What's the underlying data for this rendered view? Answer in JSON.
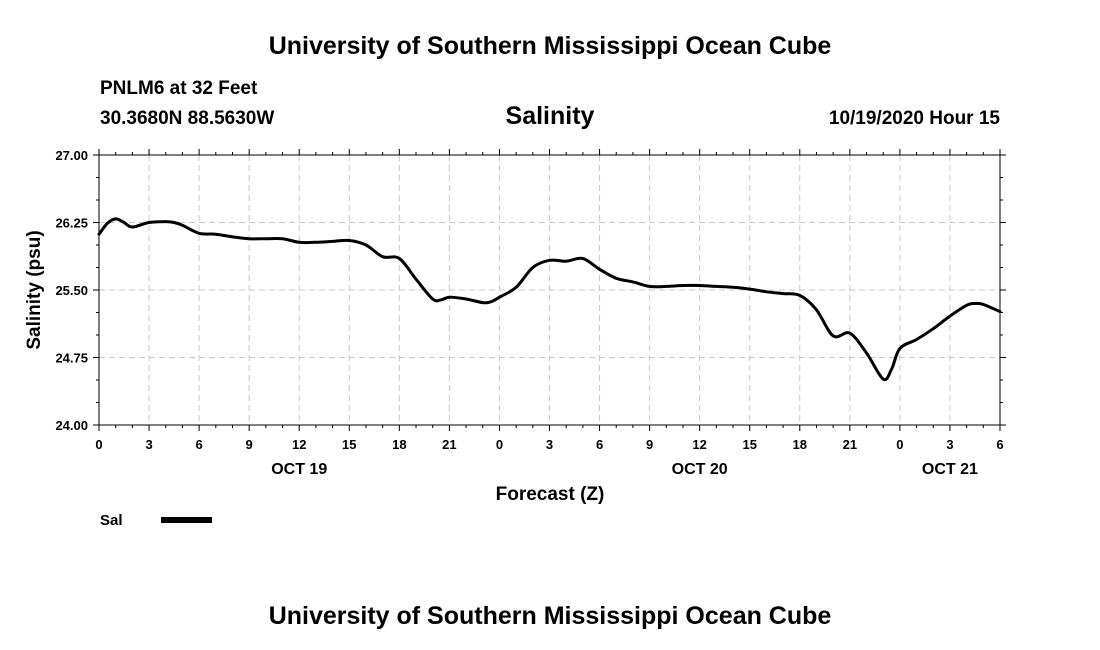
{
  "header": {
    "title_top": "University of Southern Mississippi Ocean Cube",
    "station": "PNLM6 at 32 Feet",
    "coords": "30.3680N 88.5630W",
    "datetime": "10/19/2020 Hour 15",
    "title_bottom": "University of Southern Mississippi Ocean Cube"
  },
  "chart_data": {
    "type": "line",
    "title": "Salinity",
    "xlabel": "Forecast (Z)",
    "ylabel": "Salinity (psu)",
    "xlim": [
      0,
      54
    ],
    "ylim": [
      24.0,
      27.0
    ],
    "y_ticks": [
      "24.00",
      "24.75",
      "25.50",
      "26.25",
      "27.00"
    ],
    "x_ticks": [
      "0",
      "3",
      "6",
      "9",
      "12",
      "15",
      "18",
      "21",
      "0",
      "3",
      "6",
      "9",
      "12",
      "15",
      "18",
      "21",
      "0",
      "3",
      "6"
    ],
    "dates": [
      {
        "label": "OCT 19",
        "hour": 12
      },
      {
        "label": "OCT 20",
        "hour": 36
      },
      {
        "label": "OCT 21",
        "hour": 51
      }
    ],
    "grid": true,
    "legend_position": "bottom-left",
    "series": [
      {
        "name": "Sal",
        "color": "#000000",
        "x": [
          0,
          0.5,
          1,
          1.5,
          2,
          3,
          4,
          4.5,
          5,
          6,
          7,
          8,
          9,
          10,
          11,
          12,
          13,
          14,
          15,
          16,
          17,
          18,
          19,
          20,
          20.5,
          21,
          22,
          23,
          23.5,
          24,
          25,
          26,
          27,
          28,
          29,
          30,
          31,
          32,
          33,
          34,
          35,
          36,
          37,
          38,
          39,
          40,
          41,
          42,
          43,
          44,
          45,
          46,
          47,
          47.5,
          48,
          49,
          50,
          51,
          52,
          52.5,
          53,
          54
        ],
        "values": [
          26.12,
          26.24,
          26.29,
          26.25,
          26.2,
          26.25,
          26.26,
          26.25,
          26.22,
          26.13,
          26.12,
          26.09,
          26.07,
          26.07,
          26.07,
          26.03,
          26.03,
          26.04,
          26.05,
          26.0,
          25.87,
          25.85,
          25.62,
          25.4,
          25.39,
          25.42,
          25.4,
          25.36,
          25.37,
          25.42,
          25.53,
          25.75,
          25.83,
          25.82,
          25.85,
          25.73,
          25.63,
          25.59,
          25.54,
          25.54,
          25.55,
          25.55,
          25.54,
          25.53,
          25.51,
          25.48,
          25.46,
          25.44,
          25.28,
          24.99,
          25.02,
          24.8,
          24.51,
          24.62,
          24.85,
          24.95,
          25.07,
          25.21,
          25.33,
          25.35,
          25.34,
          25.26
        ]
      }
    ]
  }
}
